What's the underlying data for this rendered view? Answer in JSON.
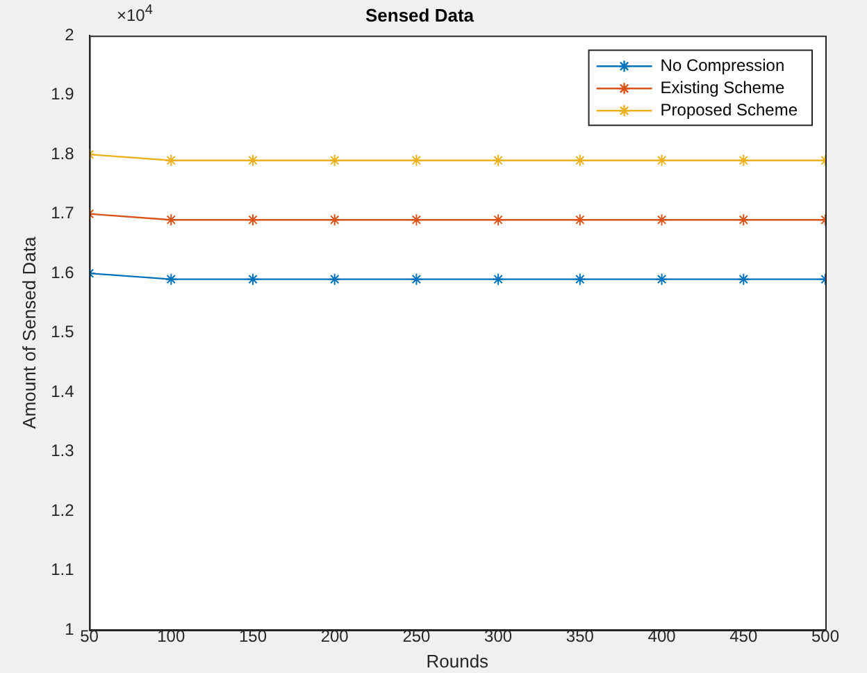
{
  "chart_data": {
    "type": "line",
    "title": "Sensed Data",
    "xlabel": "Rounds",
    "ylabel": "Amount of Sensed Data",
    "x": [
      50,
      100,
      150,
      200,
      250,
      300,
      350,
      400,
      450,
      500
    ],
    "series": [
      {
        "name": "No Compression",
        "color": "#0072bd",
        "values": [
          1.6,
          1.59,
          1.59,
          1.59,
          1.59,
          1.59,
          1.59,
          1.59,
          1.59,
          1.59
        ]
      },
      {
        "name": "Existing Scheme",
        "color": "#d95319",
        "values": [
          1.7,
          1.69,
          1.69,
          1.69,
          1.69,
          1.69,
          1.69,
          1.69,
          1.69,
          1.69
        ]
      },
      {
        "name": "Proposed Scheme",
        "color": "#edb120",
        "values": [
          1.8,
          1.79,
          1.79,
          1.79,
          1.79,
          1.79,
          1.79,
          1.79,
          1.79,
          1.79
        ]
      }
    ],
    "xlim": [
      50,
      500
    ],
    "xticks": [
      50,
      100,
      150,
      200,
      250,
      300,
      350,
      400,
      450,
      500
    ],
    "ylim": [
      1,
      2
    ],
    "yticks": [
      1,
      1.1,
      1.2,
      1.3,
      1.4,
      1.5,
      1.6,
      1.7,
      1.8,
      1.9,
      2
    ],
    "annotations": [
      "×10$^{4}$"
    ],
    "marker": "cross",
    "line_style": "solid",
    "legend": "top right",
    "grid": false
  }
}
